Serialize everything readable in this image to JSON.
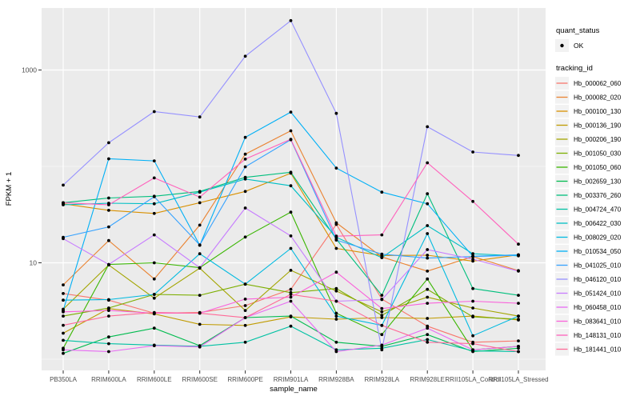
{
  "chart_data": {
    "type": "line",
    "title": "",
    "xlabel": "sample_name",
    "ylabel": "FPKM + 1",
    "y_scale": "log10",
    "y_tick_labels": [
      "10",
      "1000"
    ],
    "y_tick_values": [
      10,
      1000
    ],
    "y_minor_values": [
      1,
      100
    ],
    "ylim": [
      0.85,
      4400
    ],
    "grid": true,
    "legend_position": "right",
    "categories": [
      "PB350LA",
      "RRIM600LA",
      "RRIM600LE",
      "RRIM600SE",
      "RRIM600PE",
      "RRIM901LA",
      "RRIM928BA",
      "RRIM928LA",
      "RRIM928LE",
      "RRII105LA_Control",
      "RRII105LA_Stressed"
    ],
    "series": [
      {
        "name": "Hb_000062_060",
        "color": "#F8766D",
        "values": [
          4.8,
          4.1,
          3.0,
          3.05,
          3.6,
          5.3,
          25,
          4.2,
          2.2,
          1.5,
          1.55
        ]
      },
      {
        "name": "Hb_000082_020",
        "color": "#EA8331",
        "values": [
          5.9,
          17,
          6.8,
          24.6,
          134,
          234,
          26,
          11.5,
          8.2,
          11.6,
          8.3
        ]
      },
      {
        "name": "Hb_000100_130",
        "color": "#D89000",
        "values": [
          41,
          35,
          32.5,
          42,
          55,
          85,
          14.1,
          11.9,
          12,
          10.4,
          12.1
        ]
      },
      {
        "name": "Hb_000136_190",
        "color": "#C09B00",
        "values": [
          1.86,
          3.35,
          2.95,
          2.3,
          2.24,
          2.75,
          2.6,
          2.7,
          2.65,
          2.8,
          2.55
        ]
      },
      {
        "name": "Hb_000206_190",
        "color": "#A3A500",
        "values": [
          3.3,
          9.5,
          4.3,
          8.8,
          3.2,
          8.35,
          5.1,
          3.1,
          4.4,
          3.4,
          2.8
        ]
      },
      {
        "name": "Hb_001050_030",
        "color": "#7CAE00",
        "values": [
          2.8,
          3.4,
          4.7,
          4.6,
          6.0,
          4.9,
          5.4,
          2.85,
          5.3,
          2.75,
          2.6
        ]
      },
      {
        "name": "Hb_001050_060",
        "color": "#39B600",
        "values": [
          1.3,
          9.6,
          10,
          8.9,
          18.5,
          33.5,
          3.0,
          1.8,
          6.8,
          1.25,
          1.36
        ]
      },
      {
        "name": "Hb_002659_130",
        "color": "#00BB4E",
        "values": [
          1.15,
          1.7,
          2.1,
          1.38,
          2.7,
          2.8,
          1.5,
          1.36,
          1.8,
          1.2,
          1.3
        ]
      },
      {
        "name": "Hb_003376_260",
        "color": "#00BF7D",
        "values": [
          42,
          47,
          49,
          55,
          77,
          87,
          17.6,
          4.6,
          52,
          5.4,
          4.6
        ]
      },
      {
        "name": "Hb_004724_470",
        "color": "#00C1A3",
        "values": [
          1.57,
          1.45,
          1.4,
          1.36,
          1.5,
          2.2,
          1.25,
          1.3,
          1.6,
          1.22,
          1.2
        ]
      },
      {
        "name": "Hb_006422_030",
        "color": "#00BFC4",
        "values": [
          40,
          41.5,
          41,
          54,
          74,
          63,
          18.4,
          11.3,
          24.3,
          12.4,
          11.8
        ]
      },
      {
        "name": "Hb_008029_020",
        "color": "#00BAE0",
        "values": [
          4.1,
          4.15,
          4.7,
          12.4,
          6.0,
          14.1,
          2.8,
          2.24,
          20.1,
          1.75,
          2.8
        ]
      },
      {
        "name": "Hb_010534_050",
        "color": "#00B0F6",
        "values": [
          3.2,
          120,
          114,
          15.2,
          200,
          366,
          96,
          54,
          41,
          11.7,
          12.1
        ]
      },
      {
        "name": "Hb_041025_010",
        "color": "#35A2FF",
        "values": [
          18.4,
          23.6,
          48.5,
          15.3,
          99,
          189,
          17.2,
          12.3,
          11.2,
          11.6,
          12.0
        ]
      },
      {
        "name": "Hb_046120_010",
        "color": "#9590FF",
        "values": [
          64,
          176,
          370,
          326,
          1390,
          3250,
          355,
          1.25,
          258,
          141,
          130
        ]
      },
      {
        "name": "Hb_051424_010",
        "color": "#C77CFF",
        "values": [
          17.8,
          9.6,
          19.5,
          8.9,
          37,
          19,
          4.0,
          4.15,
          13.7,
          10.9,
          8.2
        ]
      },
      {
        "name": "Hb_060458_010",
        "color": "#E76BF3",
        "values": [
          1.25,
          1.2,
          1.38,
          1.34,
          2.7,
          4.0,
          1.2,
          1.4,
          2.1,
          1.25,
          1.36
        ]
      },
      {
        "name": "Hb_083641_010",
        "color": "#FA62DB",
        "values": [
          3.1,
          3.2,
          3.0,
          3.0,
          4.2,
          4.4,
          8.0,
          3.35,
          3.8,
          4.0,
          3.8
        ]
      },
      {
        "name": "Hb_148131_010",
        "color": "#FF62BC",
        "values": [
          42,
          40,
          76,
          48,
          119,
          191,
          18.9,
          19.5,
          109,
          43.3,
          15.6
        ]
      },
      {
        "name": "Hb_181441_010",
        "color": "#FF6A98",
        "values": [
          2.25,
          2.8,
          3.05,
          3.0,
          2.7,
          4.7,
          4.0,
          2.24,
          1.5,
          1.45,
          1.2
        ]
      }
    ],
    "legend": {
      "quant_status_title": "quant_status",
      "quant_status_items": [
        {
          "label": "OK",
          "symbol": "point",
          "color": "#000000"
        }
      ],
      "tracking_id_title": "tracking_id"
    }
  },
  "style_colors": {
    "panel_bg": "#EBEBEB",
    "grid": "#FFFFFF",
    "axis_text": "#4D4D4D",
    "tick": "#333333",
    "point": "#000000",
    "legend_key_bg": "#F2F2F2",
    "title_text": "#000000"
  }
}
